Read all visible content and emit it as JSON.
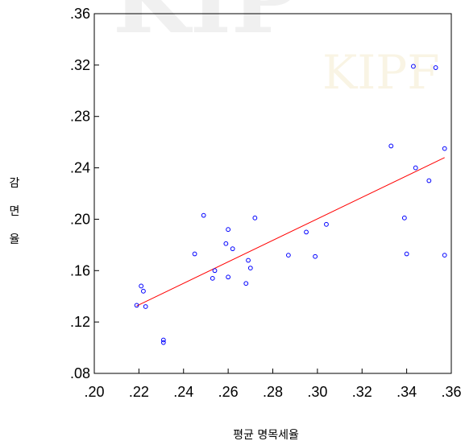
{
  "chart_data": {
    "type": "scatter",
    "xlabel": "평균 명목세율",
    "ylabel_chars": [
      "감",
      "면",
      "율"
    ],
    "xlim": [
      0.2,
      0.36
    ],
    "ylim": [
      0.08,
      0.36
    ],
    "x_ticks": [
      0.2,
      0.22,
      0.24,
      0.26,
      0.28,
      0.3,
      0.32,
      0.34,
      0.36
    ],
    "x_tick_labels": [
      ".20",
      ".22",
      ".24",
      ".26",
      ".28",
      ".30",
      ".32",
      ".34",
      ".36"
    ],
    "y_ticks": [
      0.08,
      0.12,
      0.16,
      0.2,
      0.24,
      0.28,
      0.32,
      0.36
    ],
    "y_tick_labels": [
      ".08",
      ".12",
      ".16",
      ".20",
      ".24",
      ".28",
      ".32",
      ".36"
    ],
    "grid": false,
    "points": [
      {
        "x": 0.219,
        "y": 0.133
      },
      {
        "x": 0.221,
        "y": 0.148
      },
      {
        "x": 0.222,
        "y": 0.144
      },
      {
        "x": 0.223,
        "y": 0.132
      },
      {
        "x": 0.231,
        "y": 0.106
      },
      {
        "x": 0.231,
        "y": 0.104
      },
      {
        "x": 0.245,
        "y": 0.173
      },
      {
        "x": 0.249,
        "y": 0.203
      },
      {
        "x": 0.253,
        "y": 0.154
      },
      {
        "x": 0.254,
        "y": 0.16
      },
      {
        "x": 0.259,
        "y": 0.181
      },
      {
        "x": 0.26,
        "y": 0.192
      },
      {
        "x": 0.26,
        "y": 0.155
      },
      {
        "x": 0.262,
        "y": 0.177
      },
      {
        "x": 0.268,
        "y": 0.15
      },
      {
        "x": 0.269,
        "y": 0.168
      },
      {
        "x": 0.27,
        "y": 0.162
      },
      {
        "x": 0.272,
        "y": 0.201
      },
      {
        "x": 0.287,
        "y": 0.172
      },
      {
        "x": 0.295,
        "y": 0.19
      },
      {
        "x": 0.299,
        "y": 0.171
      },
      {
        "x": 0.304,
        "y": 0.196
      },
      {
        "x": 0.333,
        "y": 0.257
      },
      {
        "x": 0.339,
        "y": 0.201
      },
      {
        "x": 0.34,
        "y": 0.173
      },
      {
        "x": 0.343,
        "y": 0.319
      },
      {
        "x": 0.344,
        "y": 0.24
      },
      {
        "x": 0.35,
        "y": 0.23
      },
      {
        "x": 0.353,
        "y": 0.318
      },
      {
        "x": 0.357,
        "y": 0.255
      },
      {
        "x": 0.357,
        "y": 0.172
      }
    ],
    "fit_line": {
      "x": [
        0.219,
        0.357
      ],
      "y": [
        0.1325,
        0.248
      ]
    },
    "colors": {
      "points": "#0000ff",
      "fit_line": "#ff0000",
      "frame": "#000000"
    },
    "watermark": "KIPF"
  }
}
